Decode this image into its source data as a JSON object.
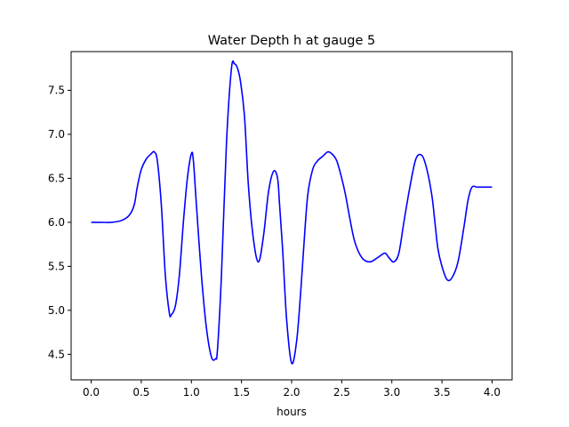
{
  "chart_data": {
    "type": "line",
    "title": "Water Depth h at gauge 5",
    "xlabel": "hours",
    "ylabel": "",
    "xlim": [
      -0.2,
      4.2
    ],
    "ylim": [
      4.21,
      7.94
    ],
    "xticks": [
      0.0,
      0.5,
      1.0,
      1.5,
      2.0,
      2.5,
      3.0,
      3.5,
      4.0
    ],
    "xtick_labels": [
      "0.0",
      "0.5",
      "1.0",
      "1.5",
      "2.0",
      "2.5",
      "3.0",
      "3.5",
      "4.0"
    ],
    "yticks": [
      4.5,
      5.0,
      5.5,
      6.0,
      6.5,
      7.0,
      7.5
    ],
    "ytick_labels": [
      "4.5",
      "5.0",
      "5.5",
      "6.0",
      "6.5",
      "7.0",
      "7.5"
    ],
    "grid": false,
    "series": [
      {
        "color": "#0000ff",
        "x": [
          0.0,
          0.1,
          0.2,
          0.3,
          0.38,
          0.43,
          0.46,
          0.5,
          0.55,
          0.6,
          0.63,
          0.66,
          0.7,
          0.74,
          0.78,
          0.8,
          0.84,
          0.88,
          0.92,
          0.96,
          1.0,
          1.02,
          1.05,
          1.1,
          1.15,
          1.2,
          1.24,
          1.26,
          1.3,
          1.35,
          1.4,
          1.43,
          1.46,
          1.49,
          1.53,
          1.57,
          1.62,
          1.67,
          1.72,
          1.77,
          1.82,
          1.86,
          1.88,
          1.91,
          1.95,
          2.0,
          2.05,
          2.09,
          2.12,
          2.16,
          2.21,
          2.26,
          2.31,
          2.36,
          2.4,
          2.45,
          2.5,
          2.54,
          2.58,
          2.63,
          2.7,
          2.78,
          2.86,
          2.93,
          2.97,
          3.02,
          3.07,
          3.12,
          3.18,
          3.24,
          3.3,
          3.35,
          3.4,
          3.43,
          3.46,
          3.5,
          3.55,
          3.6,
          3.66,
          3.72,
          3.76,
          3.8,
          3.85,
          3.9,
          3.95,
          4.0
        ],
        "y": [
          6.0,
          6.0,
          6.0,
          6.02,
          6.08,
          6.2,
          6.4,
          6.6,
          6.72,
          6.78,
          6.8,
          6.7,
          6.2,
          5.4,
          4.97,
          4.95,
          5.05,
          5.4,
          6.0,
          6.5,
          6.78,
          6.7,
          6.2,
          5.4,
          4.8,
          4.47,
          4.45,
          4.55,
          5.4,
          6.9,
          7.75,
          7.8,
          7.75,
          7.6,
          7.2,
          6.4,
          5.8,
          5.55,
          5.85,
          6.35,
          6.58,
          6.5,
          6.2,
          5.7,
          4.9,
          4.4,
          4.65,
          5.2,
          5.7,
          6.3,
          6.6,
          6.7,
          6.75,
          6.8,
          6.78,
          6.7,
          6.5,
          6.3,
          6.05,
          5.78,
          5.6,
          5.55,
          5.6,
          5.65,
          5.6,
          5.55,
          5.65,
          6.0,
          6.4,
          6.72,
          6.76,
          6.6,
          6.3,
          6.0,
          5.7,
          5.5,
          5.35,
          5.37,
          5.55,
          5.95,
          6.25,
          6.4,
          6.4,
          6.4,
          6.4,
          6.4
        ]
      }
    ]
  }
}
